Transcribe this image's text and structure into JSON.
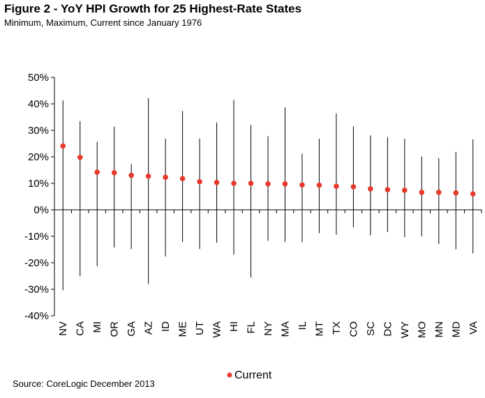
{
  "header": {
    "title": "Figure 2 - YoY HPI Growth for 25 Highest-Rate States",
    "subtitle": "Minimum, Maximum, Current since January 1976"
  },
  "footer": {
    "source": "Source: CoreLogic December 2013"
  },
  "chart_data": {
    "type": "scatter",
    "title": "Figure 2 - YoY HPI Growth for 25 Highest-Rate States",
    "subtitle": "Minimum, Maximum, Current since January 1976",
    "xlabel": "",
    "ylabel": "",
    "ylim": [
      -40,
      50
    ],
    "y_ticks": [
      -40,
      -30,
      -20,
      -10,
      0,
      10,
      20,
      30,
      40,
      50
    ],
    "y_tick_labels": [
      "-40%",
      "-30%",
      "-20%",
      "-10%",
      "0%",
      "10%",
      "20%",
      "30%",
      "40%",
      "50%"
    ],
    "grid": false,
    "legend_position": "bottom",
    "categories": [
      "NV",
      "CA",
      "MI",
      "OR",
      "GA",
      "AZ",
      "ID",
      "ME",
      "UT",
      "WA",
      "HI",
      "FL",
      "NY",
      "MA",
      "IL",
      "MT",
      "TX",
      "CO",
      "SC",
      "DC",
      "WY",
      "MO",
      "MN",
      "MD",
      "VA"
    ],
    "series": [
      {
        "name": "Current",
        "color": "#e8392b",
        "values": [
          24.1,
          19.8,
          14.2,
          14.0,
          13.0,
          12.7,
          12.3,
          11.8,
          10.6,
          10.3,
          10.0,
          10.0,
          9.8,
          9.8,
          9.4,
          9.3,
          8.9,
          8.7,
          7.9,
          7.6,
          7.4,
          6.6,
          6.6,
          6.4,
          6.0
        ]
      },
      {
        "name": "Maximum",
        "color": "#000000",
        "values": [
          41.3,
          33.5,
          25.7,
          31.4,
          17.3,
          42.1,
          26.9,
          37.3,
          26.9,
          33.0,
          41.5,
          32.0,
          27.8,
          38.7,
          21.2,
          26.8,
          36.4,
          31.5,
          28.1,
          27.4,
          26.8,
          20.1,
          19.5,
          21.9,
          26.6
        ]
      },
      {
        "name": "Minimum",
        "color": "#000000",
        "values": [
          -30.4,
          -25.1,
          -21.3,
          -14.2,
          -14.8,
          -28.0,
          -17.6,
          -12.2,
          -14.8,
          -12.4,
          -16.9,
          -25.6,
          -11.7,
          -12.2,
          -12.2,
          -8.8,
          -9.4,
          -6.6,
          -9.6,
          -8.4,
          -10.3,
          -10.0,
          -12.9,
          -14.9,
          -16.4
        ]
      }
    ]
  }
}
